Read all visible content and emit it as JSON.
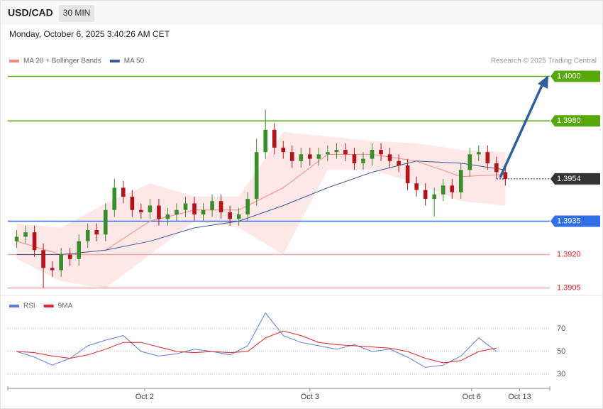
{
  "header": {
    "symbol": "USD/CAD",
    "interval": "30 MIN",
    "timestamp": "Monday, October 6, 2025 3:40:26 AM CET"
  },
  "chart_data": [
    {
      "type": "candlestick",
      "credit": "Research © 2025 Trading Central",
      "xlim": [
        -1,
        60
      ],
      "ylim": [
        1.3902,
        1.4004
      ],
      "up_color": "#3a8d2b",
      "down_color": "#b3141c",
      "open": [
        1.3926,
        1.3928,
        1.393,
        1.3922,
        1.3914,
        1.3913,
        1.392,
        1.3918,
        1.3926,
        1.3931,
        1.3929,
        1.394,
        1.395,
        1.3946,
        1.394,
        1.3939,
        1.3942,
        1.3936,
        1.3938,
        1.394,
        1.3943,
        1.3938,
        1.394,
        1.3944,
        1.3939,
        1.3936,
        1.3938,
        1.3945,
        1.3966,
        1.3976,
        1.3968,
        1.3966,
        1.3962,
        1.3965,
        1.3963,
        1.3965,
        1.3966,
        1.3967,
        1.3965,
        1.3961,
        1.3963,
        1.3967,
        1.3965,
        1.3962,
        1.396,
        1.3952,
        1.3949,
        1.3945,
        1.3947,
        1.3951,
        1.3948,
        1.3958,
        1.3965,
        1.3966,
        1.3961,
        1.3957
      ],
      "high": [
        1.3931,
        1.3933,
        1.3933,
        1.3925,
        1.3917,
        1.3923,
        1.3923,
        1.3929,
        1.3934,
        1.3934,
        1.3943,
        1.3954,
        1.3953,
        1.3949,
        1.3943,
        1.3945,
        1.3945,
        1.3941,
        1.3943,
        1.3946,
        1.3946,
        1.3943,
        1.3947,
        1.3947,
        1.3942,
        1.3941,
        1.3948,
        1.3972,
        1.3985,
        1.3979,
        1.3971,
        1.3969,
        1.3968,
        1.3968,
        1.3968,
        1.3969,
        1.397,
        1.397,
        1.3968,
        1.3966,
        1.397,
        1.397,
        1.3968,
        1.3965,
        1.3963,
        1.3955,
        1.3952,
        1.395,
        1.3954,
        1.3954,
        1.3961,
        1.3968,
        1.3969,
        1.3969,
        1.3964,
        1.396
      ],
      "low": [
        1.3923,
        1.3925,
        1.3919,
        1.3905,
        1.391,
        1.391,
        1.3915,
        1.3915,
        1.3923,
        1.3926,
        1.3926,
        1.3937,
        1.3943,
        1.3937,
        1.3936,
        1.3936,
        1.3933,
        1.3933,
        1.3935,
        1.3937,
        1.3935,
        1.3935,
        1.3937,
        1.3936,
        1.3933,
        1.3933,
        1.3935,
        1.3942,
        1.3963,
        1.3965,
        1.3963,
        1.3959,
        1.3959,
        1.396,
        1.396,
        1.3962,
        1.3963,
        1.3962,
        1.3958,
        1.3958,
        1.396,
        1.3962,
        1.3959,
        1.3957,
        1.3949,
        1.3946,
        1.3942,
        1.3937,
        1.3944,
        1.3945,
        1.3945,
        1.3955,
        1.3962,
        1.3958,
        1.3954,
        1.3951
      ],
      "close": [
        1.3928,
        1.393,
        1.3922,
        1.3914,
        1.3913,
        1.392,
        1.3918,
        1.3926,
        1.3931,
        1.3929,
        1.394,
        1.395,
        1.3946,
        1.394,
        1.3939,
        1.3942,
        1.3936,
        1.3938,
        1.394,
        1.3943,
        1.3938,
        1.394,
        1.3944,
        1.3939,
        1.3936,
        1.3938,
        1.3945,
        1.3966,
        1.3976,
        1.3968,
        1.3966,
        1.3962,
        1.3965,
        1.3963,
        1.3965,
        1.3966,
        1.3967,
        1.3965,
        1.3961,
        1.3963,
        1.3967,
        1.3965,
        1.3962,
        1.396,
        1.3952,
        1.3949,
        1.3945,
        1.3947,
        1.3951,
        1.3948,
        1.3958,
        1.3965,
        1.3966,
        1.3961,
        1.3957,
        1.3954
      ],
      "overlays": {
        "x": [
          0,
          5,
          10,
          15,
          20,
          25,
          30,
          35,
          40,
          45,
          50,
          55
        ],
        "series": [
          {
            "name": "MA 20 + Bollinger Bands",
            "color": "#f28b82",
            "band_color": "#fde3e3",
            "values": [
              1.3926,
              1.392,
              1.3922,
              1.3935,
              1.394,
              1.394,
              1.395,
              1.3965,
              1.3965,
              1.3962,
              1.3955,
              1.3956
            ],
            "upper": [
              1.3934,
              1.3932,
              1.3943,
              1.3952,
              1.3946,
              1.3946,
              1.3975,
              1.3973,
              1.3971,
              1.397,
              1.3967,
              1.3966
            ],
            "lower": [
              1.3918,
              1.3908,
              1.3905,
              1.392,
              1.3935,
              1.3932,
              1.392,
              1.3958,
              1.3958,
              1.3952,
              1.3944,
              1.3942
            ]
          },
          {
            "name": "MA 50",
            "color": "#3c5a99",
            "values": [
              1.392,
              1.392,
              1.3922,
              1.3926,
              1.3932,
              1.3935,
              1.3942,
              1.395,
              1.3957,
              1.3962,
              1.3961,
              1.3958
            ]
          }
        ]
      },
      "levels": [
        {
          "value": 1.4,
          "label": "1.4000",
          "color": "#56a80b",
          "boxed": true
        },
        {
          "value": 1.398,
          "label": "1.3980",
          "color": "#56a80b",
          "boxed": true
        },
        {
          "value": 1.3954,
          "label": "1.3954",
          "color": "#333333",
          "boxed": true,
          "dotted": true
        },
        {
          "value": 1.3935,
          "label": "1.3935",
          "color": "#2f6fe8",
          "boxed": true
        },
        {
          "value": 1.392,
          "label": "1.3920",
          "color": "#e0242b",
          "line_color": "#f5a3a3",
          "boxed": false
        },
        {
          "value": 1.3905,
          "label": "1.3905",
          "color": "#e0242b",
          "line_color": "#f5a3a3",
          "boxed": false
        }
      ]
    },
    {
      "type": "line",
      "xlim": [
        -1,
        60
      ],
      "ylim": [
        25,
        90
      ],
      "yticks": [
        30,
        50,
        70
      ],
      "grid": true,
      "x": [
        0,
        2,
        4,
        6,
        8,
        10,
        12,
        14,
        16,
        18,
        20,
        22,
        24,
        26,
        28,
        30,
        32,
        34,
        36,
        38,
        40,
        42,
        44,
        46,
        48,
        50,
        52,
        54
      ],
      "series": [
        {
          "name": "RSI",
          "color": "#5b7fd6",
          "values": [
            50,
            45,
            38,
            44,
            55,
            60,
            64,
            50,
            46,
            48,
            52,
            50,
            47,
            55,
            84,
            64,
            58,
            55,
            52,
            56,
            50,
            52,
            45,
            36,
            38,
            46,
            62,
            50
          ]
        },
        {
          "name": "9MA",
          "color": "#e0242b",
          "values": [
            50,
            49,
            46,
            44,
            47,
            52,
            58,
            58,
            54,
            50,
            49,
            50,
            49,
            50,
            62,
            68,
            64,
            58,
            56,
            55,
            54,
            53,
            50,
            44,
            40,
            42,
            50,
            53
          ]
        }
      ],
      "xticks": [
        {
          "value": 14.4,
          "label": "Oct 2"
        },
        {
          "value": 33,
          "label": "Oct 3"
        },
        {
          "value": 51.2,
          "label": "Oct 6"
        },
        {
          "value": 56.6,
          "label": "Oct 13"
        }
      ]
    }
  ]
}
